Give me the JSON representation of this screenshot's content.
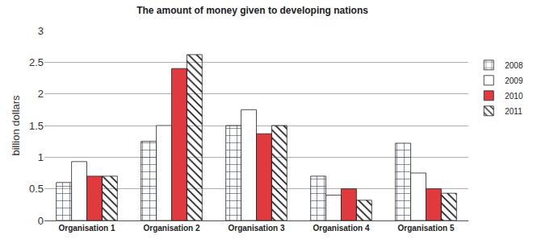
{
  "chart_data": {
    "type": "bar",
    "title": "The amount of money given to developing nations",
    "y_label": "billion dollars",
    "categories": [
      "Organisation 1",
      "Organisation 2",
      "Organisation 3",
      "Organisation 4",
      "Organisation 5"
    ],
    "series": [
      {
        "name": "2008",
        "color": "#c6d9f1",
        "marker": "grid",
        "values": [
          0.6,
          1.25,
          1.5,
          0.7,
          1.22
        ]
      },
      {
        "name": "2009",
        "color": "#ffffff",
        "values": [
          0.93,
          1.5,
          1.75,
          0.4,
          0.75
        ]
      },
      {
        "name": "2010",
        "color": "#e0393e",
        "values": [
          0.7,
          2.4,
          1.37,
          0.5,
          0.5
        ]
      },
      {
        "name": "2011",
        "color": "#ffffff",
        "marker": "hatch",
        "values": [
          0.7,
          2.62,
          1.5,
          0.32,
          0.43
        ]
      }
    ],
    "ylim": [
      0,
      3
    ],
    "yticks": [
      0,
      0.5,
      1,
      1.5,
      2,
      2.5,
      3
    ],
    "grid": true,
    "legend": "right"
  }
}
